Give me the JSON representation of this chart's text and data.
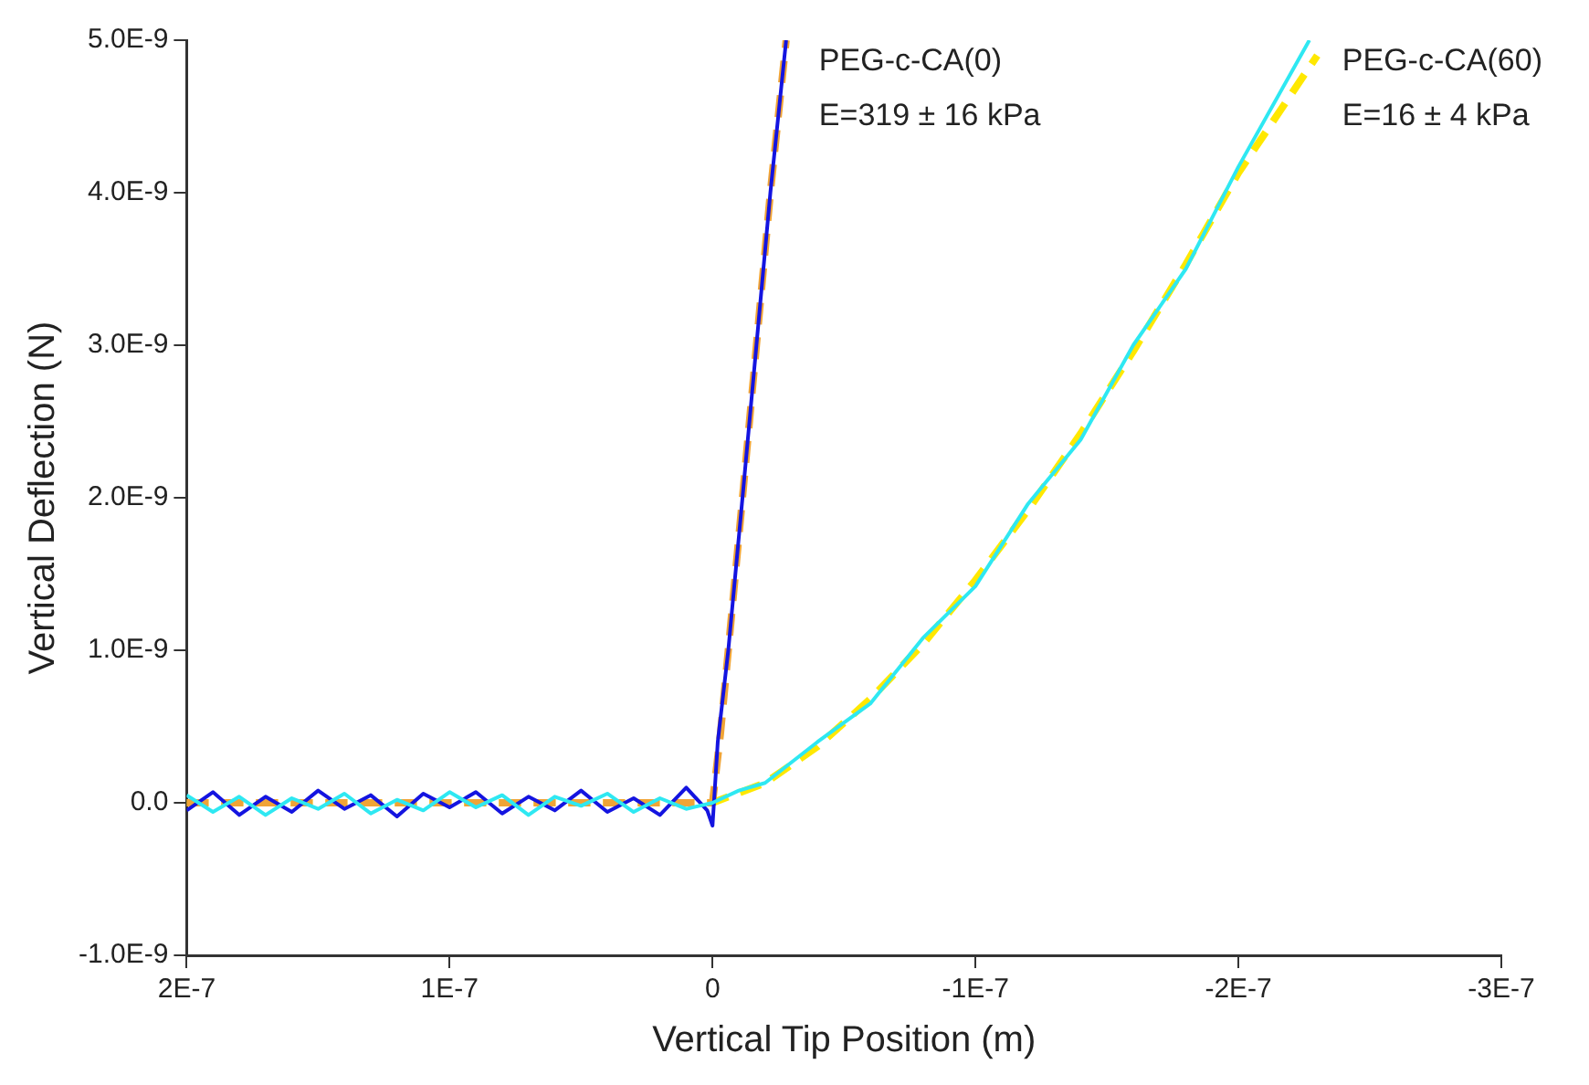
{
  "chart_data": {
    "type": "line",
    "xlabel": "Vertical Tip Position (m)",
    "ylabel": "Vertical Deflection (N)",
    "xlim": [
      2e-07,
      -3e-07
    ],
    "xticks": [
      {
        "value": 2e-07,
        "label": "2E-7"
      },
      {
        "value": 1e-07,
        "label": "1E-7"
      },
      0,
      {
        "value": -1e-07,
        "label": "-1E-7"
      },
      {
        "value": -2e-07,
        "label": "-2E-7"
      },
      {
        "value": -3e-07,
        "label": "-3E-7"
      }
    ],
    "ylim": [
      -1e-09,
      5e-09
    ],
    "yticks": [
      {
        "value": -1e-09,
        "label": "-1.0E-9"
      },
      {
        "value": 0,
        "label": "0.0"
      },
      {
        "value": 1e-09,
        "label": "1.0E-9"
      },
      {
        "value": 2e-09,
        "label": "2.0E-9"
      },
      {
        "value": 3e-09,
        "label": "3.0E-9"
      },
      {
        "value": 4e-09,
        "label": "4.0E-9"
      },
      {
        "value": 5e-09,
        "label": "5.0E-9"
      }
    ],
    "grid": false,
    "legend": false,
    "marker": "none",
    "series": [
      {
        "name": "PEG-c-CA(60)",
        "color": "#2ee8f2",
        "line_style": "solid",
        "x": [
          2e-07,
          1.9e-07,
          1.8e-07,
          1.7e-07,
          1.6e-07,
          1.5e-07,
          1.4e-07,
          1.3e-07,
          1.2e-07,
          1.1e-07,
          1e-07,
          9e-08,
          8e-08,
          7e-08,
          6e-08,
          5e-08,
          4e-08,
          3e-08,
          2e-08,
          1e-08,
          0,
          -1e-08,
          -2e-08,
          -4e-08,
          -6e-08,
          -8e-08,
          -1e-07,
          -1.2e-07,
          -1.4e-07,
          -1.6e-07,
          -1.8e-07,
          -2e-07,
          -2.27e-07
        ],
        "values": [
          5e-11,
          -6e-11,
          4e-11,
          -8e-11,
          3e-11,
          -4e-11,
          6e-11,
          -7e-11,
          2e-11,
          -5e-11,
          7e-11,
          -3e-11,
          5e-11,
          -8e-11,
          4e-11,
          -2e-11,
          6e-11,
          -6e-11,
          3e-11,
          -4e-11,
          0,
          8e-11,
          1.3e-10,
          4e-10,
          6.5e-10,
          1.08e-09,
          1.42e-09,
          1.96e-09,
          2.38e-09,
          3e-09,
          3.5e-09,
          4.17e-09,
          5e-09
        ]
      },
      {
        "name": "PEG-c-CA(0)",
        "color": "#1414e0",
        "line_style": "solid",
        "x": [
          2e-07,
          1.9e-07,
          1.8e-07,
          1.7e-07,
          1.6e-07,
          1.5e-07,
          1.4e-07,
          1.3e-07,
          1.2e-07,
          1.1e-07,
          1e-07,
          9e-08,
          8e-08,
          7e-08,
          6e-08,
          5e-08,
          4e-08,
          3e-08,
          2e-08,
          1e-08,
          2e-09,
          0,
          -2e-09,
          -6e-09,
          -1.14e-08,
          -1.67e-08,
          -2.2e-08,
          -2.8e-08
        ],
        "values": [
          -5e-11,
          7e-11,
          -8e-11,
          4e-11,
          -6e-11,
          8e-11,
          -4e-11,
          5e-11,
          -9e-11,
          6e-11,
          -3e-11,
          7e-11,
          -7e-11,
          4e-11,
          -5e-11,
          8e-11,
          -6e-11,
          3e-11,
          -8e-11,
          1e-10,
          -5e-11,
          -1.5e-10,
          4e-10,
          1e-09,
          2e-09,
          3e-09,
          4e-09,
          5e-09
        ]
      },
      {
        "color": "#f0a436",
        "line_style": "dashed",
        "x": [
          2e-07,
          0,
          -3e-09,
          -6e-09,
          -1.14e-08,
          -1.67e-08,
          -2.2e-08,
          -2.8e-08
        ],
        "values": [
          0,
          0,
          4.5e-10,
          1e-09,
          2e-09,
          3e-09,
          4e-09,
          5e-09
        ]
      },
      {
        "color": "#ffe800",
        "line_style": "dashed",
        "x": [
          2e-07,
          0,
          -2e-08,
          -4e-08,
          -6e-08,
          -8e-08,
          -1e-07,
          -1.2e-07,
          -1.4e-07,
          -1.6e-07,
          -1.8e-07,
          -2e-07,
          -2.3e-07
        ],
        "values": [
          0,
          0,
          1.3e-10,
          3.7e-10,
          6.8e-10,
          1.04e-09,
          1.46e-09,
          1.92e-09,
          2.42e-09,
          2.96e-09,
          3.53e-09,
          4.13e-09,
          4.9e-09
        ]
      }
    ],
    "annotations": [
      {
        "text": "E=319 ± 16 kPa",
        "x": -2.8e-08,
        "y": 5e-09
      },
      {
        "text": "E=16 ± 4 kPa",
        "x": -2.27e-07,
        "y": 5e-09
      }
    ]
  }
}
